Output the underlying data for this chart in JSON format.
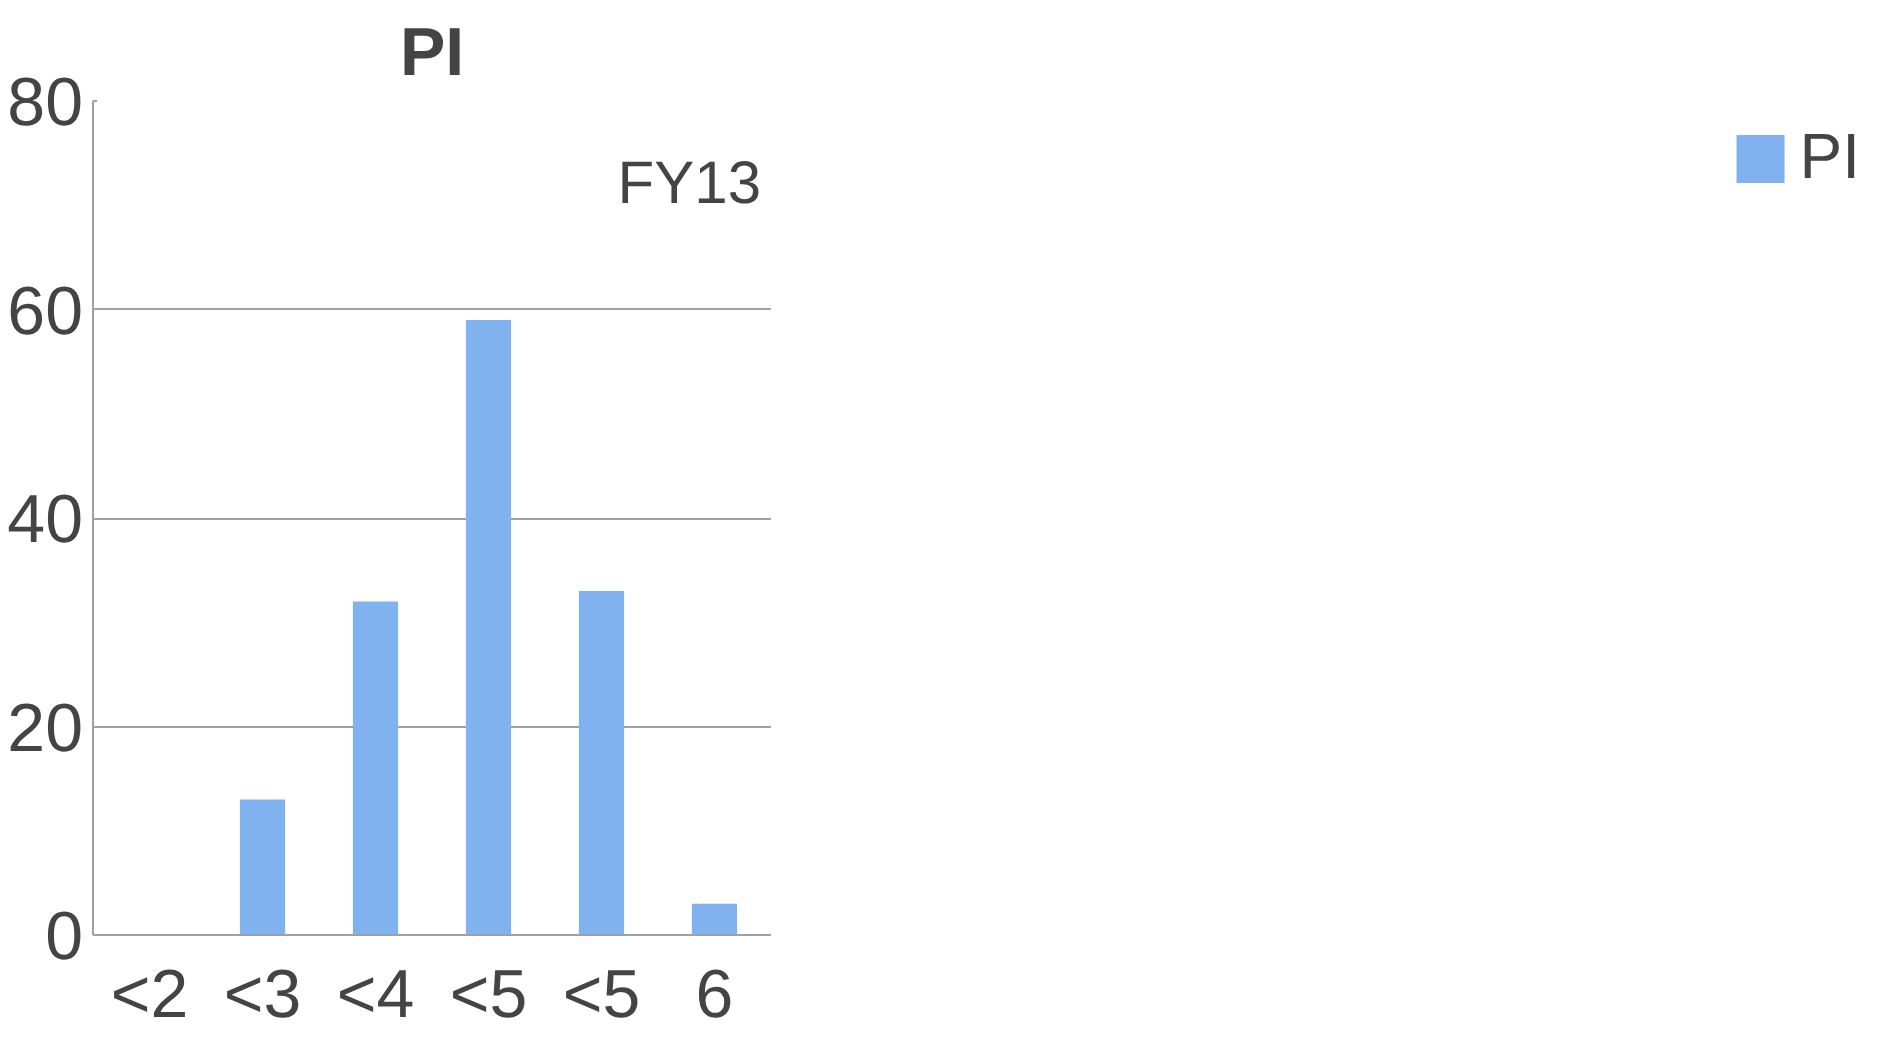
{
  "chart_data": {
    "type": "bar",
    "title": "PI",
    "categories": [
      "<2",
      "<3",
      "<4",
      "<5",
      "<5",
      "6"
    ],
    "series": [
      {
        "name": "PI",
        "color": "#7fb2ef",
        "values": [
          0,
          13,
          32,
          59,
          33,
          3
        ]
      }
    ],
    "ylim": [
      0,
      80
    ],
    "yticks": [
      0,
      20,
      40,
      60,
      80
    ],
    "grid": "y",
    "legend": "right",
    "annotations": [
      "FY13"
    ]
  }
}
